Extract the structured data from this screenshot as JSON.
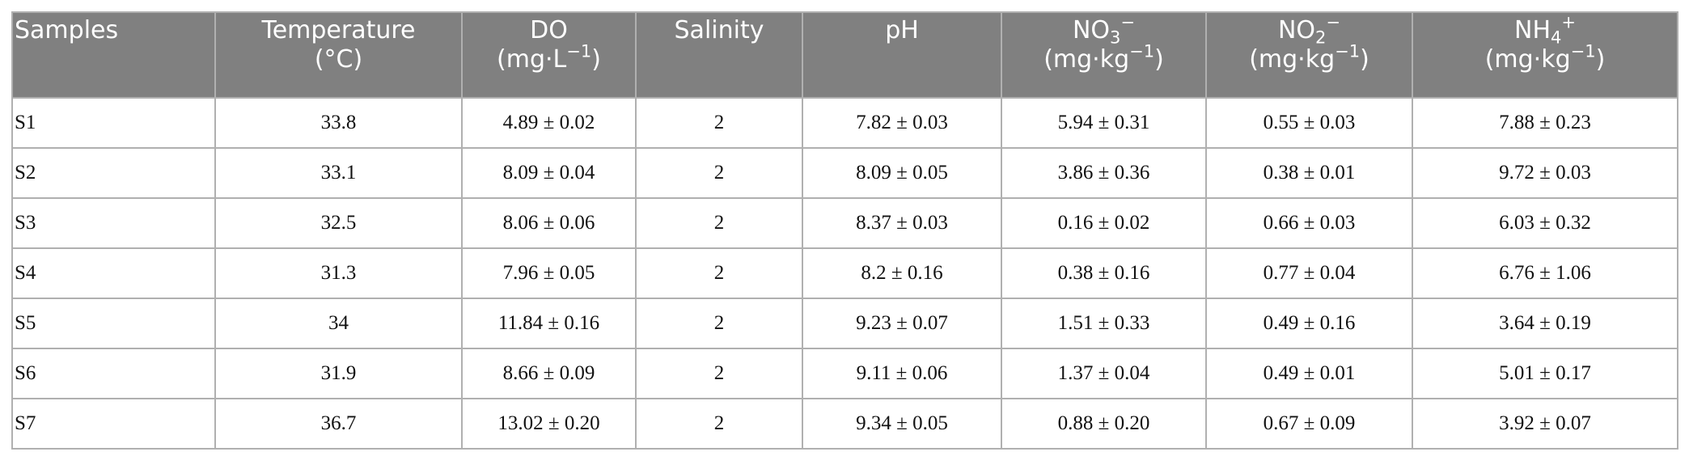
{
  "table": {
    "header": [
      [
        [
          {
            "t": "Samples"
          }
        ]
      ],
      [
        [
          {
            "t": "Temperature"
          }
        ],
        [
          {
            "t": "(°C)"
          }
        ]
      ],
      [
        [
          {
            "t": "DO"
          }
        ],
        [
          {
            "t": "(mg·L"
          },
          {
            "t": "−1",
            "v": "sup"
          },
          {
            "t": ")"
          }
        ]
      ],
      [
        [
          {
            "t": "Salinity"
          }
        ]
      ],
      [
        [
          {
            "t": "pH"
          }
        ]
      ],
      [
        [
          {
            "t": "NO"
          },
          {
            "t": "3",
            "v": "sub"
          },
          {
            "t": "−",
            "v": "sup"
          }
        ],
        [
          {
            "t": "(mg·kg"
          },
          {
            "t": "−1",
            "v": "sup"
          },
          {
            "t": ")"
          }
        ]
      ],
      [
        [
          {
            "t": "NO"
          },
          {
            "t": "2",
            "v": "sub"
          },
          {
            "t": "−",
            "v": "sup"
          }
        ],
        [
          {
            "t": "(mg·kg"
          },
          {
            "t": "−1",
            "v": "sup"
          },
          {
            "t": ")"
          }
        ]
      ],
      [
        [
          {
            "t": "NH"
          },
          {
            "t": "4",
            "v": "sub"
          },
          {
            "t": "+",
            "v": "sup"
          }
        ],
        [
          {
            "t": "(mg·kg"
          },
          {
            "t": "−1",
            "v": "sup"
          },
          {
            "t": ")"
          }
        ]
      ]
    ],
    "rows": [
      [
        "S1",
        "33.8",
        "4.89 ± 0.02",
        "2",
        "7.82 ± 0.03",
        "5.94 ± 0.31",
        "0.55 ± 0.03",
        "7.88 ± 0.23"
      ],
      [
        "S2",
        "33.1",
        "8.09 ± 0.04",
        "2",
        "8.09 ± 0.05",
        "3.86 ± 0.36",
        "0.38 ± 0.01",
        "9.72 ± 0.03"
      ],
      [
        "S3",
        "32.5",
        "8.06 ± 0.06",
        "2",
        "8.37 ± 0.03",
        "0.16 ± 0.02",
        "0.66 ± 0.03",
        "6.03 ± 0.32"
      ],
      [
        "S4",
        "31.3",
        "7.96 ± 0.05",
        "2",
        "8.2 ± 0.16",
        "0.38 ± 0.16",
        "0.77 ± 0.04",
        "6.76 ± 1.06"
      ],
      [
        "S5",
        "34",
        "11.84 ± 0.16",
        "2",
        "9.23 ± 0.07",
        "1.51 ± 0.33",
        "0.49 ± 0.16",
        "3.64 ± 0.19"
      ],
      [
        "S6",
        "31.9",
        "8.66 ± 0.09",
        "2",
        "9.11 ± 0.06",
        "1.37 ± 0.04",
        "0.49 ± 0.01",
        "5.01 ± 0.17"
      ],
      [
        "S7",
        "36.7",
        "13.02 ± 0.20",
        "2",
        "9.34 ± 0.05",
        "0.88 ± 0.20",
        "0.67 ± 0.09",
        "3.92 ± 0.07"
      ]
    ]
  }
}
